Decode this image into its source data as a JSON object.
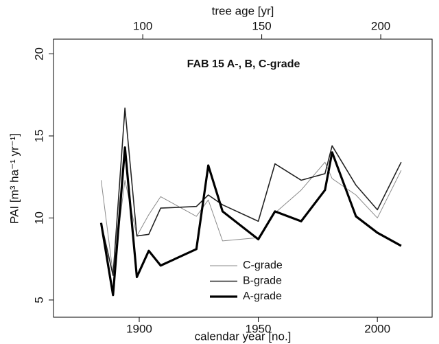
{
  "chart_data": {
    "type": "line",
    "title": "FAB 15 A-, B, C-grade",
    "x_label": "calendar year [no.]",
    "x2_label": "tree age [yr]",
    "y_label": "PAI [m³ ha⁻¹ yr⁻¹]",
    "x": [
      1884,
      1889,
      1894,
      1899,
      1904,
      1909,
      1924,
      1929,
      1935,
      1950,
      1957,
      1968,
      1978,
      1981,
      1991,
      2000,
      2010
    ],
    "series": [
      {
        "name": "C-grade",
        "color": "#8a8a8a",
        "values": [
          12.3,
          6.6,
          12.3,
          8.9,
          10.2,
          11.3,
          10.1,
          11.1,
          8.6,
          8.8,
          10.3,
          11.7,
          13.4,
          12.4,
          11.4,
          10.0,
          12.9
        ]
      },
      {
        "name": "B-grade",
        "color": "#222222",
        "values": [
          9.7,
          6.5,
          16.7,
          8.9,
          9.0,
          10.6,
          10.7,
          11.4,
          10.8,
          9.8,
          13.3,
          12.3,
          12.7,
          14.4,
          12.0,
          10.5,
          13.4
        ]
      },
      {
        "name": "A-grade",
        "color": "#000000",
        "values": [
          9.7,
          5.3,
          14.3,
          6.4,
          8.0,
          7.1,
          8.1,
          13.2,
          10.4,
          8.7,
          10.4,
          9.8,
          11.7,
          14.0,
          10.1,
          9.1,
          8.3
        ]
      }
    ],
    "xlim": [
      1864,
      2023
    ],
    "xticks": [
      1900,
      1950,
      2000
    ],
    "x2lim": [
      62.5,
      221.6
    ],
    "x2ticks": [
      100,
      150,
      200
    ],
    "ylim": [
      3.95,
      20.9
    ],
    "yticks": [
      5,
      10,
      15,
      20
    ],
    "grid": false
  }
}
